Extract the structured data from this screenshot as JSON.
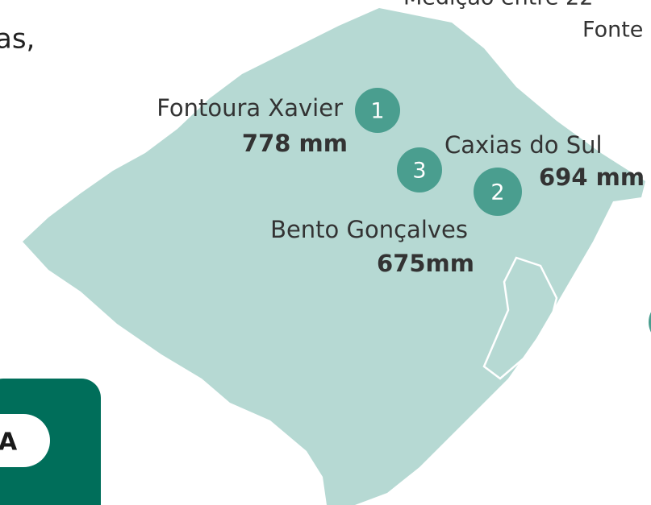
{
  "header": {
    "line1": "Medição entre 22",
    "line2": "Fonte"
  },
  "intro": "as,",
  "markers": [
    {
      "number": "1",
      "city": "Fontoura Xavier",
      "amount": "778 mm"
    },
    {
      "number": "2",
      "city": "Caxias do Sul",
      "amount": "694 mm"
    },
    {
      "number": "3",
      "city": "Bento Gonçalves",
      "amount": "675mm"
    }
  ],
  "badge": "A"
}
